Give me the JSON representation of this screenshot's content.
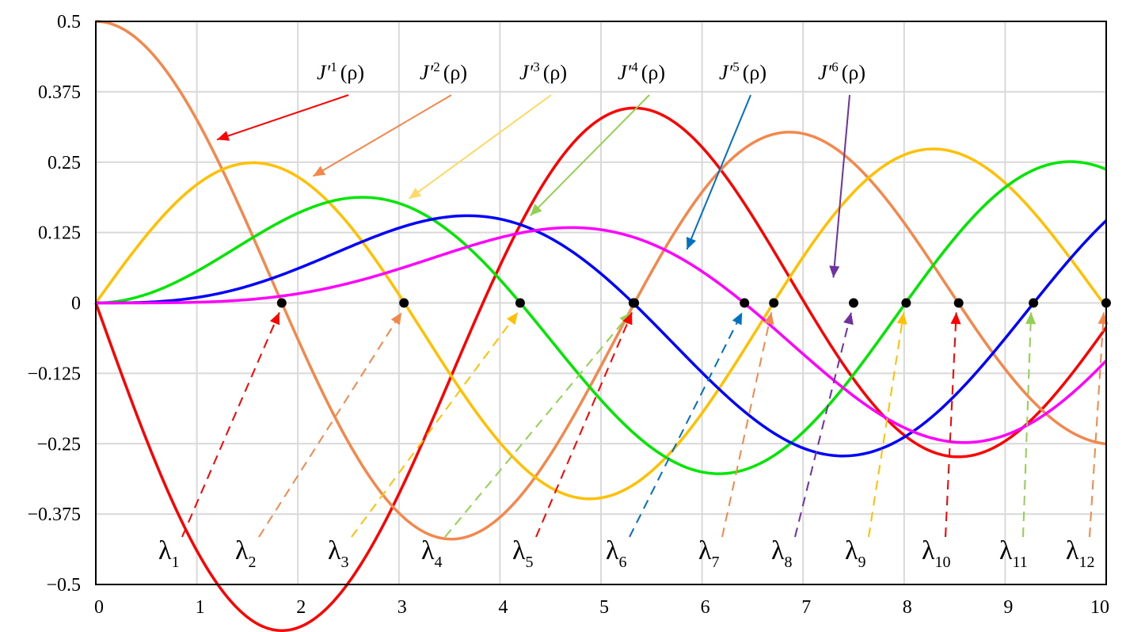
{
  "chart_data": {
    "type": "line",
    "title": "",
    "xlabel": "",
    "ylabel": "",
    "xlim": [
      0,
      10
    ],
    "ylim": [
      -0.5,
      0.5
    ],
    "x_ticks": [
      "0",
      "1",
      "2",
      "3",
      "4",
      "5",
      "6",
      "7",
      "8",
      "9",
      "10"
    ],
    "y_ticks": [
      "0.5",
      "0.375",
      "0.25",
      "0.125",
      "0",
      "−0.125",
      "−0.25",
      "−0.375",
      "−0.5"
    ],
    "grid": true,
    "series": [
      {
        "name": "J′1(ρ)",
        "order": 0,
        "color": "#ff0000"
      },
      {
        "name": "J′2(ρ)",
        "order": 1,
        "color": "#f4874b"
      },
      {
        "name": "J′3(ρ)",
        "order": 2,
        "color": "#ffc000"
      },
      {
        "name": "J′4(ρ)",
        "order": 3,
        "color": "#00e600"
      },
      {
        "name": "J′5(ρ)",
        "order": 4,
        "color": "#0000ff"
      },
      {
        "name": "J′6(ρ)",
        "order": 5,
        "color": "#ff00ff"
      }
    ],
    "curve_labels": [
      {
        "prefix": "J′",
        "sup": "1",
        "suffix": "(ρ)",
        "series": 0
      },
      {
        "prefix": "J′",
        "sup": "2",
        "suffix": "(ρ)",
        "series": 1
      },
      {
        "prefix": "J′",
        "sup": "3",
        "suffix": "(ρ)",
        "series": 2
      },
      {
        "prefix": "J′",
        "sup": "4",
        "suffix": "(ρ)",
        "series": 3
      },
      {
        "prefix": "J′",
        "sup": "5",
        "suffix": "(ρ)",
        "series": 4
      },
      {
        "prefix": "J′",
        "sup": "6",
        "suffix": "(ρ)",
        "series": 5
      }
    ],
    "zeros": [
      {
        "label": "λ",
        "sub": "1",
        "x": 1.84,
        "color": "#ff0000"
      },
      {
        "label": "λ",
        "sub": "2",
        "x": 3.05,
        "color": "#f4874b"
      },
      {
        "label": "λ",
        "sub": "3",
        "x": 4.2,
        "color": "#ffc000"
      },
      {
        "label": "λ",
        "sub": "4",
        "x": 5.32,
        "color": "#92d050"
      },
      {
        "label": "λ",
        "sub": "5",
        "x": 5.33,
        "color": "#ff0000"
      },
      {
        "label": "λ",
        "sub": "6",
        "x": 6.42,
        "color": "#0070c0"
      },
      {
        "label": "λ",
        "sub": "7",
        "x": 6.71,
        "color": "#f4874b"
      },
      {
        "label": "λ",
        "sub": "8",
        "x": 7.5,
        "color": "#7030a0"
      },
      {
        "label": "λ",
        "sub": "9",
        "x": 8.02,
        "color": "#ffc000"
      },
      {
        "label": "λ",
        "sub": "10",
        "x": 8.54,
        "color": "#ff0000"
      },
      {
        "label": "λ",
        "sub": "11",
        "x": 9.28,
        "color": "#92d050"
      },
      {
        "label": "λ",
        "sub": "12",
        "x": 10.0,
        "color": "#f4874b"
      }
    ]
  }
}
